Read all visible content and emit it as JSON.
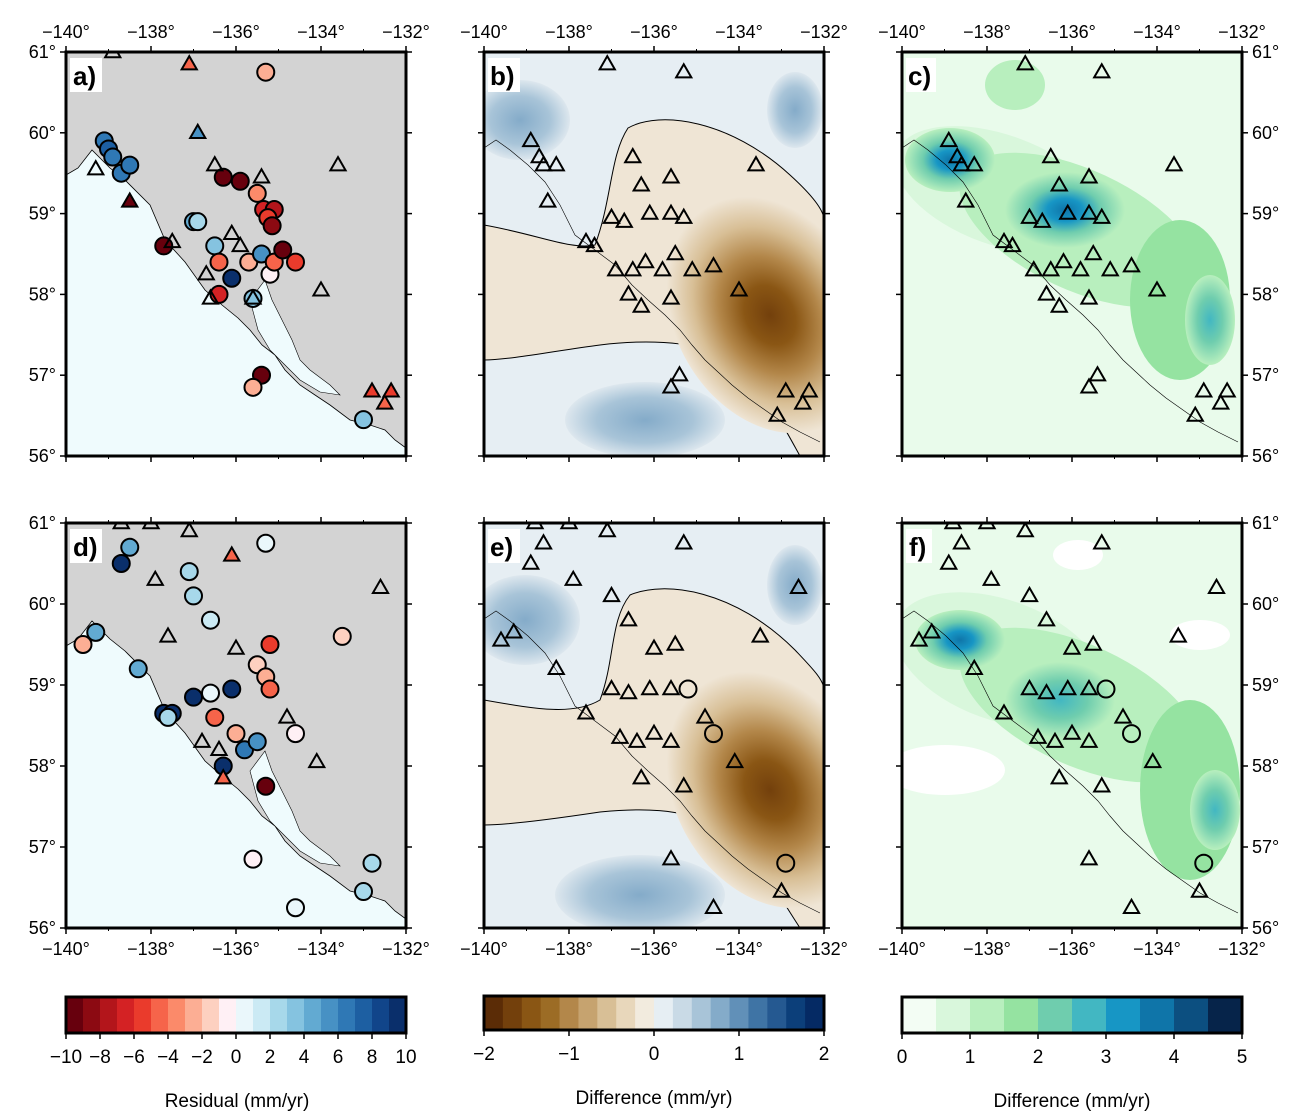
{
  "figure": {
    "lon_ticks": [
      "−140°",
      "−138°",
      "−136°",
      "−134°",
      "−132°"
    ],
    "lat_ticks": [
      "61°",
      "60°",
      "59°",
      "58°",
      "57°",
      "56°"
    ],
    "lon_range": [
      -140,
      -132
    ],
    "lat_range": [
      56,
      61
    ],
    "colors": {
      "land": "#d3d3d3",
      "ocean_a": "#effbfd",
      "coast": "#000000",
      "frame": "#000000"
    }
  },
  "panels": [
    {
      "label": "a)",
      "type": "residual-stations"
    },
    {
      "label": "b)",
      "type": "difference-field"
    },
    {
      "label": "c)",
      "type": "uncertainty-field"
    },
    {
      "label": "d)",
      "type": "residual-stations"
    },
    {
      "label": "e)",
      "type": "difference-field"
    },
    {
      "label": "f)",
      "type": "uncertainty-field"
    }
  ],
  "colorbars": [
    {
      "title": "Residual (mm/yr)",
      "ticks": [
        "−10",
        "−8",
        "−6",
        "−4",
        "−2",
        "0",
        "2",
        "4",
        "6",
        "8",
        "10"
      ],
      "range": [
        -10,
        10
      ],
      "colors": [
        "#67000d",
        "#8c0a12",
        "#b3151b",
        "#d42224",
        "#ea3b2c",
        "#f6644a",
        "#fb8a6a",
        "#fcae94",
        "#fdd0c0",
        "#fff0f5",
        "#eaf7fb",
        "#cbeaf4",
        "#a7d8ea",
        "#85c3e0",
        "#62aad2",
        "#4791c4",
        "#2f78b5",
        "#1d5fa2",
        "#11458a",
        "#0a2f6b"
      ]
    },
    {
      "title": "Difference (mm/yr)",
      "ticks": [
        "−2",
        "−1",
        "0",
        "1",
        "2"
      ],
      "range": [
        -2,
        2
      ],
      "colors": [
        "#5b2c06",
        "#73400c",
        "#8a5614",
        "#9c6c25",
        "#b3874a",
        "#c6a36f",
        "#d8bf96",
        "#e8d7bb",
        "#f2ebde",
        "#e6eef3",
        "#c9dae6",
        "#a8c4d8",
        "#84abc9",
        "#6190b8",
        "#3f74a5",
        "#255991",
        "#0c3f7a",
        "#052a64"
      ]
    },
    {
      "title": "Difference (mm/yr)",
      "ticks": [
        "0",
        "1",
        "2",
        "3",
        "4",
        "5"
      ],
      "range": [
        0,
        5
      ],
      "colors": [
        "#f3fdf4",
        "#d9f7dc",
        "#b8efbe",
        "#95e3a1",
        "#6fcdae",
        "#42b7c2",
        "#1796c5",
        "#0f75a9",
        "#0c4f80",
        "#06244a"
      ]
    }
  ],
  "stations": {
    "a": [
      {
        "lon": -139.1,
        "lat": 59.9,
        "v": 6,
        "shape": "circle"
      },
      {
        "lon": -139.0,
        "lat": 59.8,
        "v": 7,
        "shape": "circle"
      },
      {
        "lon": -138.9,
        "lat": 59.7,
        "v": 6,
        "shape": "circle"
      },
      {
        "lon": -138.7,
        "lat": 59.5,
        "v": 6,
        "shape": "circle"
      },
      {
        "lon": -138.5,
        "lat": 59.6,
        "v": 6,
        "shape": "circle"
      },
      {
        "lon": -137.7,
        "lat": 58.6,
        "v": -10,
        "shape": "circle"
      },
      {
        "lon": -137.0,
        "lat": 58.9,
        "v": 4,
        "shape": "circle"
      },
      {
        "lon": -136.9,
        "lat": 58.9,
        "v": 2,
        "shape": "circle"
      },
      {
        "lon": -136.5,
        "lat": 58.6,
        "v": 3,
        "shape": "circle"
      },
      {
        "lon": -136.4,
        "lat": 58.4,
        "v": -5,
        "shape": "circle"
      },
      {
        "lon": -136.4,
        "lat": 58.0,
        "v": -7,
        "shape": "circle"
      },
      {
        "lon": -136.1,
        "lat": 58.2,
        "v": 10,
        "shape": "circle"
      },
      {
        "lon": -135.7,
        "lat": 58.4,
        "v": -3,
        "shape": "circle"
      },
      {
        "lon": -135.6,
        "lat": 57.95,
        "v": 3,
        "shape": "circle"
      },
      {
        "lon": -135.4,
        "lat": 58.5,
        "v": 5,
        "shape": "circle"
      },
      {
        "lon": -135.2,
        "lat": 58.25,
        "v": -1,
        "shape": "circle"
      },
      {
        "lon": -135.1,
        "lat": 58.4,
        "v": -5,
        "shape": "circle"
      },
      {
        "lon": -134.6,
        "lat": 58.4,
        "v": -6,
        "shape": "circle"
      },
      {
        "lon": -134.9,
        "lat": 58.55,
        "v": -10,
        "shape": "circle"
      },
      {
        "lon": -136.3,
        "lat": 59.45,
        "v": -10,
        "shape": "circle"
      },
      {
        "lon": -135.9,
        "lat": 59.4,
        "v": -10,
        "shape": "circle"
      },
      {
        "lon": -135.5,
        "lat": 59.25,
        "v": -4,
        "shape": "circle"
      },
      {
        "lon": -135.35,
        "lat": 59.05,
        "v": -7,
        "shape": "circle"
      },
      {
        "lon": -135.1,
        "lat": 59.05,
        "v": -8,
        "shape": "circle"
      },
      {
        "lon": -135.25,
        "lat": 58.95,
        "v": -6,
        "shape": "circle"
      },
      {
        "lon": -135.15,
        "lat": 58.85,
        "v": -9,
        "shape": "circle"
      },
      {
        "lon": -135.3,
        "lat": 60.75,
        "v": -3,
        "shape": "circle"
      },
      {
        "lon": -135.4,
        "lat": 57.0,
        "v": -10,
        "shape": "circle"
      },
      {
        "lon": -135.6,
        "lat": 56.85,
        "v": -3,
        "shape": "circle"
      },
      {
        "lon": -133.0,
        "lat": 56.45,
        "v": 3,
        "shape": "circle"
      },
      {
        "lon": -137.1,
        "lat": 60.85,
        "v": -5,
        "shape": "triangle"
      },
      {
        "lon": -136.9,
        "lat": 60.0,
        "v": 5,
        "shape": "triangle"
      },
      {
        "lon": -138.5,
        "lat": 59.15,
        "v": -10,
        "shape": "triangle"
      },
      {
        "lon": -132.8,
        "lat": 56.8,
        "v": -6,
        "shape": "triangle"
      },
      {
        "lon": -132.5,
        "lat": 56.65,
        "v": -5,
        "shape": "triangle"
      },
      {
        "lon": -132.35,
        "lat": 56.8,
        "v": -6,
        "shape": "triangle"
      },
      {
        "lon": -138.9,
        "lat": 61.0,
        "v": null,
        "shape": "triangle"
      },
      {
        "lon": -139.3,
        "lat": 59.55,
        "v": null,
        "shape": "triangle"
      },
      {
        "lon": -137.5,
        "lat": 58.65,
        "v": null,
        "shape": "triangle"
      },
      {
        "lon": -136.7,
        "lat": 58.25,
        "v": null,
        "shape": "triangle"
      },
      {
        "lon": -136.5,
        "lat": 59.6,
        "v": null,
        "shape": "triangle"
      },
      {
        "lon": -136.1,
        "lat": 58.75,
        "v": null,
        "shape": "triangle"
      },
      {
        "lon": -135.9,
        "lat": 58.6,
        "v": null,
        "shape": "triangle"
      },
      {
        "lon": -135.6,
        "lat": 57.95,
        "v": null,
        "shape": "triangle"
      },
      {
        "lon": -135.4,
        "lat": 59.45,
        "v": null,
        "shape": "triangle"
      },
      {
        "lon": -134.0,
        "lat": 58.05,
        "v": null,
        "shape": "triangle"
      },
      {
        "lon": -133.6,
        "lat": 59.6,
        "v": null,
        "shape": "triangle"
      },
      {
        "lon": -136.6,
        "lat": 57.95,
        "v": null,
        "shape": "triangle"
      }
    ],
    "b": [
      {
        "lon": -137.1,
        "lat": 60.85,
        "shape": "triangle"
      },
      {
        "lon": -135.3,
        "lat": 60.75,
        "shape": "triangle"
      },
      {
        "lon": -138.9,
        "lat": 59.9,
        "shape": "triangle"
      },
      {
        "lon": -138.7,
        "lat": 59.7,
        "shape": "triangle"
      },
      {
        "lon": -138.6,
        "lat": 59.6,
        "shape": "triangle"
      },
      {
        "lon": -138.3,
        "lat": 59.6,
        "shape": "triangle"
      },
      {
        "lon": -138.5,
        "lat": 59.15,
        "shape": "triangle"
      },
      {
        "lon": -137.6,
        "lat": 58.65,
        "shape": "triangle"
      },
      {
        "lon": -137.4,
        "lat": 58.6,
        "shape": "triangle"
      },
      {
        "lon": -136.5,
        "lat": 59.7,
        "shape": "triangle"
      },
      {
        "lon": -136.3,
        "lat": 59.35,
        "shape": "triangle"
      },
      {
        "lon": -135.6,
        "lat": 59.45,
        "shape": "triangle"
      },
      {
        "lon": -133.6,
        "lat": 59.6,
        "shape": "triangle"
      },
      {
        "lon": -137.0,
        "lat": 58.95,
        "shape": "triangle"
      },
      {
        "lon": -136.7,
        "lat": 58.9,
        "shape": "triangle"
      },
      {
        "lon": -136.1,
        "lat": 59.0,
        "shape": "triangle"
      },
      {
        "lon": -135.6,
        "lat": 59.0,
        "shape": "triangle"
      },
      {
        "lon": -135.3,
        "lat": 58.95,
        "shape": "triangle"
      },
      {
        "lon": -136.9,
        "lat": 58.3,
        "shape": "triangle"
      },
      {
        "lon": -136.5,
        "lat": 58.3,
        "shape": "triangle"
      },
      {
        "lon": -136.2,
        "lat": 58.4,
        "shape": "triangle"
      },
      {
        "lon": -135.8,
        "lat": 58.3,
        "shape": "triangle"
      },
      {
        "lon": -135.5,
        "lat": 58.5,
        "shape": "triangle"
      },
      {
        "lon": -135.1,
        "lat": 58.3,
        "shape": "triangle"
      },
      {
        "lon": -134.6,
        "lat": 58.35,
        "shape": "triangle"
      },
      {
        "lon": -136.6,
        "lat": 58.0,
        "shape": "triangle"
      },
      {
        "lon": -136.3,
        "lat": 57.85,
        "shape": "triangle"
      },
      {
        "lon": -135.6,
        "lat": 57.95,
        "shape": "triangle"
      },
      {
        "lon": -134.0,
        "lat": 58.05,
        "shape": "triangle"
      },
      {
        "lon": -135.4,
        "lat": 57.0,
        "shape": "triangle"
      },
      {
        "lon": -135.6,
        "lat": 56.85,
        "shape": "triangle"
      },
      {
        "lon": -132.9,
        "lat": 56.8,
        "shape": "triangle"
      },
      {
        "lon": -132.5,
        "lat": 56.65,
        "shape": "triangle"
      },
      {
        "lon": -132.35,
        "lat": 56.8,
        "shape": "triangle"
      },
      {
        "lon": -133.1,
        "lat": 56.5,
        "shape": "triangle"
      }
    ],
    "d": [
      {
        "lon": -138.5,
        "lat": 60.7,
        "v": 4,
        "shape": "circle"
      },
      {
        "lon": -138.7,
        "lat": 60.5,
        "v": 10,
        "shape": "circle"
      },
      {
        "lon": -137.1,
        "lat": 60.4,
        "v": 2,
        "shape": "circle"
      },
      {
        "lon": -137.0,
        "lat": 60.1,
        "v": 2,
        "shape": "circle"
      },
      {
        "lon": -136.6,
        "lat": 59.8,
        "v": 1,
        "shape": "circle"
      },
      {
        "lon": -135.3,
        "lat": 60.75,
        "v": 0,
        "shape": "circle"
      },
      {
        "lon": -139.6,
        "lat": 59.5,
        "v": -3,
        "shape": "circle"
      },
      {
        "lon": -139.3,
        "lat": 59.65,
        "v": 4,
        "shape": "circle"
      },
      {
        "lon": -138.3,
        "lat": 59.2,
        "v": 4,
        "shape": "circle"
      },
      {
        "lon": -137.7,
        "lat": 58.65,
        "v": 9,
        "shape": "circle"
      },
      {
        "lon": -137.5,
        "lat": 58.65,
        "v": 10,
        "shape": "circle"
      },
      {
        "lon": -137.6,
        "lat": 58.6,
        "v": 2,
        "shape": "circle"
      },
      {
        "lon": -137.0,
        "lat": 58.85,
        "v": 9,
        "shape": "circle"
      },
      {
        "lon": -136.6,
        "lat": 58.9,
        "v": 0,
        "shape": "circle"
      },
      {
        "lon": -136.5,
        "lat": 58.6,
        "v": -5,
        "shape": "circle"
      },
      {
        "lon": -136.1,
        "lat": 58.95,
        "v": 10,
        "shape": "circle"
      },
      {
        "lon": -136.0,
        "lat": 58.4,
        "v": -3,
        "shape": "circle"
      },
      {
        "lon": -135.8,
        "lat": 58.2,
        "v": 6,
        "shape": "circle"
      },
      {
        "lon": -135.5,
        "lat": 58.3,
        "v": 5,
        "shape": "circle"
      },
      {
        "lon": -136.3,
        "lat": 58.0,
        "v": 10,
        "shape": "circle"
      },
      {
        "lon": -135.3,
        "lat": 57.75,
        "v": -10,
        "shape": "circle"
      },
      {
        "lon": -135.5,
        "lat": 59.25,
        "v": -2,
        "shape": "circle"
      },
      {
        "lon": -135.3,
        "lat": 59.1,
        "v": -3,
        "shape": "circle"
      },
      {
        "lon": -135.2,
        "lat": 58.95,
        "v": -5,
        "shape": "circle"
      },
      {
        "lon": -135.2,
        "lat": 59.5,
        "v": -6,
        "shape": "circle"
      },
      {
        "lon": -134.6,
        "lat": 58.4,
        "v": -1,
        "shape": "circle"
      },
      {
        "lon": -133.5,
        "lat": 59.6,
        "v": -2,
        "shape": "circle"
      },
      {
        "lon": -135.6,
        "lat": 56.85,
        "v": -1,
        "shape": "circle"
      },
      {
        "lon": -134.6,
        "lat": 56.25,
        "v": 0,
        "shape": "circle"
      },
      {
        "lon": -133.0,
        "lat": 56.45,
        "v": 2,
        "shape": "circle"
      },
      {
        "lon": -132.8,
        "lat": 56.8,
        "v": 2,
        "shape": "circle"
      },
      {
        "lon": -136.1,
        "lat": 60.6,
        "v": -5,
        "shape": "triangle"
      },
      {
        "lon": -136.3,
        "lat": 57.85,
        "v": -5,
        "shape": "triangle"
      },
      {
        "lon": -138.7,
        "lat": 61.0,
        "v": null,
        "shape": "triangle"
      },
      {
        "lon": -138.0,
        "lat": 61.0,
        "v": null,
        "shape": "triangle"
      },
      {
        "lon": -137.1,
        "lat": 60.9,
        "v": null,
        "shape": "triangle"
      },
      {
        "lon": -137.9,
        "lat": 60.3,
        "v": null,
        "shape": "triangle"
      },
      {
        "lon": -137.6,
        "lat": 59.6,
        "v": null,
        "shape": "triangle"
      },
      {
        "lon": -136.0,
        "lat": 59.45,
        "v": null,
        "shape": "triangle"
      },
      {
        "lon": -132.6,
        "lat": 60.2,
        "v": null,
        "shape": "triangle"
      },
      {
        "lon": -134.1,
        "lat": 58.05,
        "v": null,
        "shape": "triangle"
      },
      {
        "lon": -134.8,
        "lat": 58.6,
        "v": null,
        "shape": "triangle"
      },
      {
        "lon": -136.8,
        "lat": 58.3,
        "v": null,
        "shape": "triangle"
      },
      {
        "lon": -136.4,
        "lat": 58.2,
        "v": null,
        "shape": "triangle"
      }
    ],
    "e": [
      {
        "lon": -138.8,
        "lat": 61.0,
        "shape": "triangle"
      },
      {
        "lon": -138.0,
        "lat": 61.0,
        "shape": "triangle"
      },
      {
        "lon": -137.1,
        "lat": 60.9,
        "shape": "triangle"
      },
      {
        "lon": -135.3,
        "lat": 60.75,
        "shape": "triangle"
      },
      {
        "lon": -138.6,
        "lat": 60.75,
        "shape": "triangle"
      },
      {
        "lon": -138.9,
        "lat": 60.5,
        "shape": "triangle"
      },
      {
        "lon": -137.9,
        "lat": 60.3,
        "shape": "triangle"
      },
      {
        "lon": -137.0,
        "lat": 60.1,
        "shape": "triangle"
      },
      {
        "lon": -136.6,
        "lat": 59.8,
        "shape": "triangle"
      },
      {
        "lon": -139.6,
        "lat": 59.55,
        "shape": "triangle"
      },
      {
        "lon": -139.3,
        "lat": 59.65,
        "shape": "triangle"
      },
      {
        "lon": -138.3,
        "lat": 59.2,
        "shape": "triangle"
      },
      {
        "lon": -136.0,
        "lat": 59.45,
        "shape": "triangle"
      },
      {
        "lon": -135.5,
        "lat": 59.5,
        "shape": "triangle"
      },
      {
        "lon": -132.6,
        "lat": 60.2,
        "shape": "triangle"
      },
      {
        "lon": -133.5,
        "lat": 59.6,
        "shape": "triangle"
      },
      {
        "lon": -137.6,
        "lat": 58.65,
        "shape": "triangle"
      },
      {
        "lon": -137.0,
        "lat": 58.95,
        "shape": "triangle"
      },
      {
        "lon": -136.6,
        "lat": 58.9,
        "shape": "triangle"
      },
      {
        "lon": -136.1,
        "lat": 58.95,
        "shape": "triangle"
      },
      {
        "lon": -135.6,
        "lat": 58.95,
        "shape": "triangle"
      },
      {
        "lon": -136.8,
        "lat": 58.35,
        "shape": "triangle"
      },
      {
        "lon": -136.4,
        "lat": 58.3,
        "shape": "triangle"
      },
      {
        "lon": -136.0,
        "lat": 58.4,
        "shape": "triangle"
      },
      {
        "lon": -135.6,
        "lat": 58.3,
        "shape": "triangle"
      },
      {
        "lon": -134.8,
        "lat": 58.6,
        "shape": "triangle"
      },
      {
        "lon": -136.3,
        "lat": 57.85,
        "shape": "triangle"
      },
      {
        "lon": -135.3,
        "lat": 57.75,
        "shape": "triangle"
      },
      {
        "lon": -134.1,
        "lat": 58.05,
        "shape": "triangle"
      },
      {
        "lon": -135.6,
        "lat": 56.85,
        "shape": "triangle"
      },
      {
        "lon": -134.6,
        "lat": 56.25,
        "shape": "triangle"
      },
      {
        "lon": -133.0,
        "lat": 56.45,
        "shape": "triangle"
      },
      {
        "lon": -135.2,
        "lat": 58.95,
        "shape": "circle"
      },
      {
        "lon": -134.6,
        "lat": 58.4,
        "shape": "circle"
      },
      {
        "lon": -132.9,
        "lat": 56.8,
        "shape": "circle"
      }
    ]
  }
}
